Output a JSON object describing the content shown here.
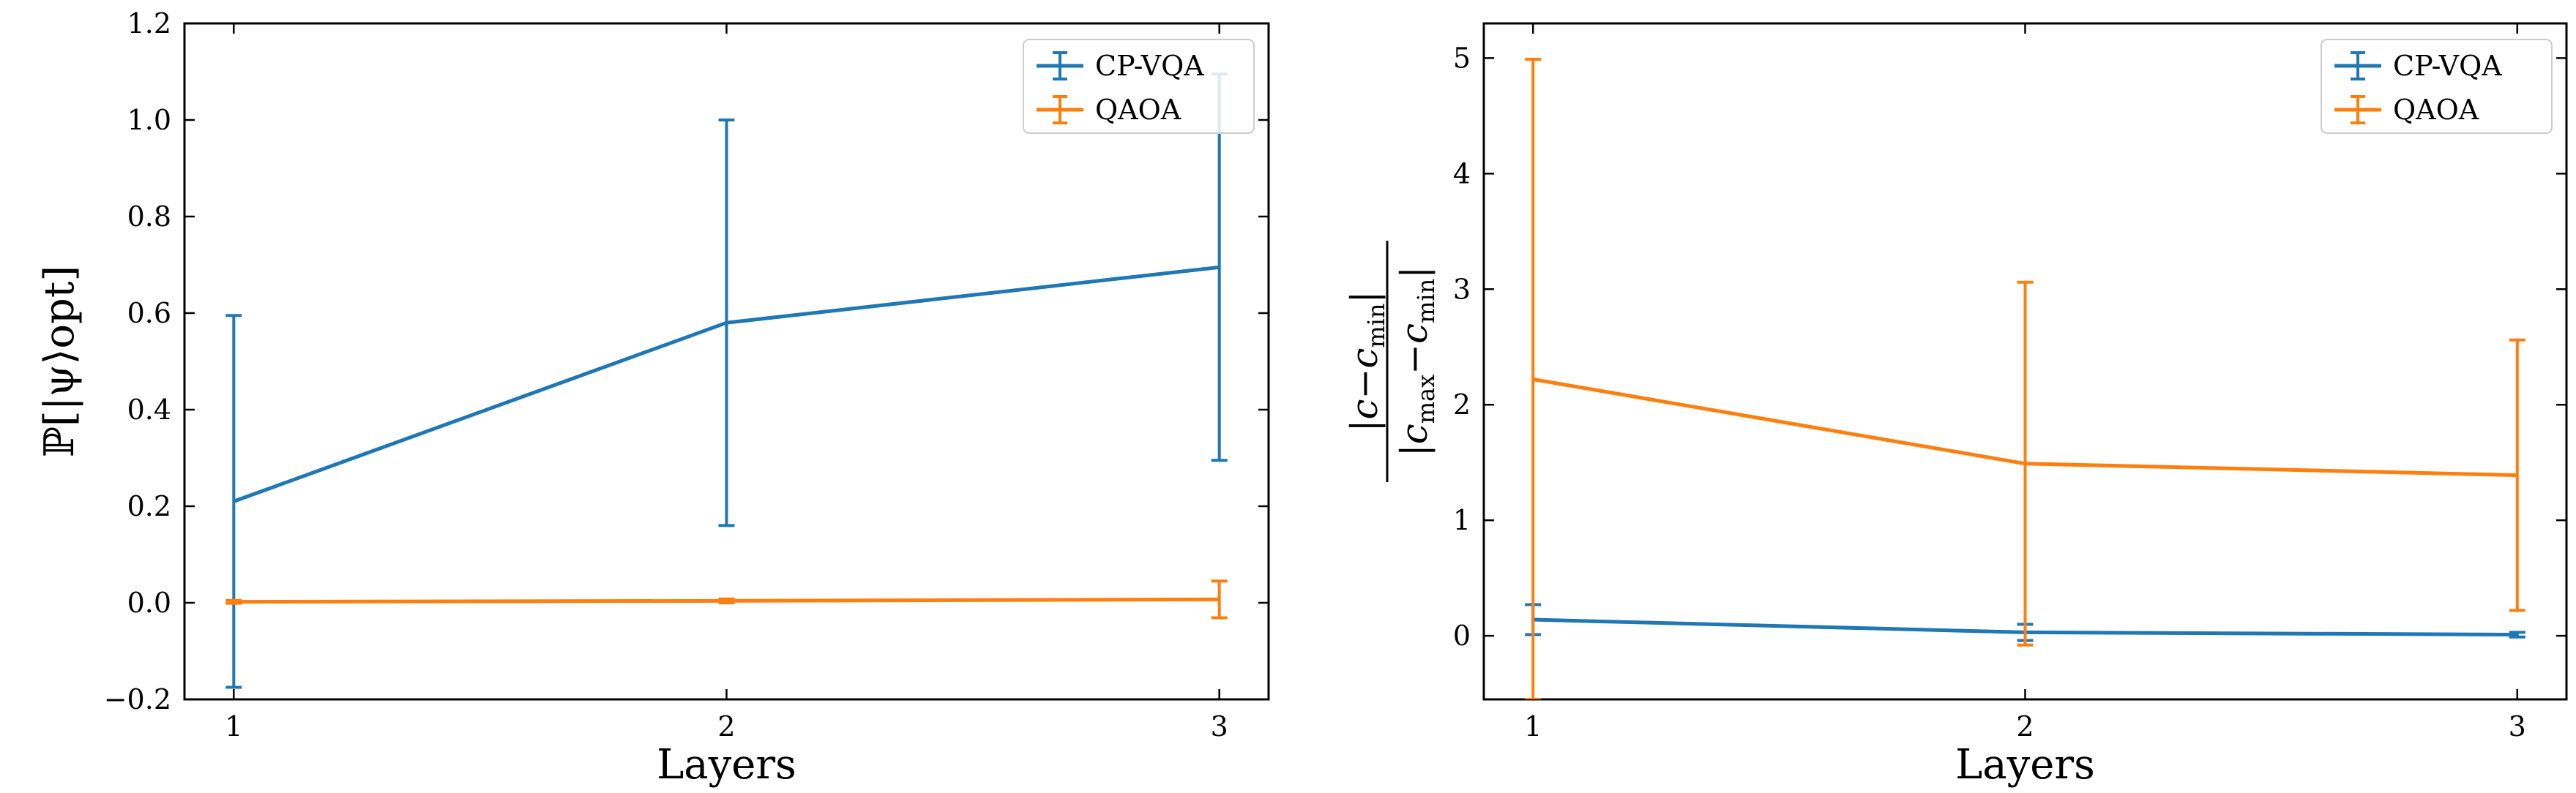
{
  "chart_data": [
    {
      "type": "line",
      "xlabel": "Layers",
      "ylabel": "ℙ[|ψ⟩opt]",
      "x": [
        1,
        2,
        3
      ],
      "xticks": [
        "1",
        "2",
        "3"
      ],
      "ylim": [
        -0.2,
        1.2
      ],
      "yticks": [
        "−0.2",
        "0.0",
        "0.2",
        "0.4",
        "0.6",
        "0.8",
        "1.0",
        "1.2"
      ],
      "legend_position": "top-right",
      "grid": false,
      "series": [
        {
          "name": "CP-VQA",
          "color": "#1f77b4",
          "values": [
            0.21,
            0.58,
            0.695
          ],
          "yerr": [
            0.385,
            0.42,
            0.4
          ]
        },
        {
          "name": "QAOA",
          "color": "#ff7f0e",
          "values": [
            0.002,
            0.004,
            0.007
          ],
          "yerr": [
            0.003,
            0.004,
            0.038
          ]
        }
      ]
    },
    {
      "type": "line",
      "xlabel": "Layers",
      "ylabel": "|c−cmin| / |cmax−cmin|",
      "x": [
        1,
        2,
        3
      ],
      "xticks": [
        "1",
        "2",
        "3"
      ],
      "ylim": [
        -0.55,
        5.3
      ],
      "yticks": [
        "0",
        "1",
        "2",
        "3",
        "4",
        "5"
      ],
      "legend_position": "top-right",
      "grid": false,
      "series": [
        {
          "name": "CP-VQA",
          "color": "#1f77b4",
          "values": [
            0.14,
            0.03,
            0.01
          ],
          "yerr": [
            0.13,
            0.07,
            0.02
          ]
        },
        {
          "name": "QAOA",
          "color": "#ff7f0e",
          "values": [
            2.22,
            1.49,
            1.39
          ],
          "yerr": [
            2.77,
            1.57,
            1.17
          ]
        }
      ]
    }
  ]
}
